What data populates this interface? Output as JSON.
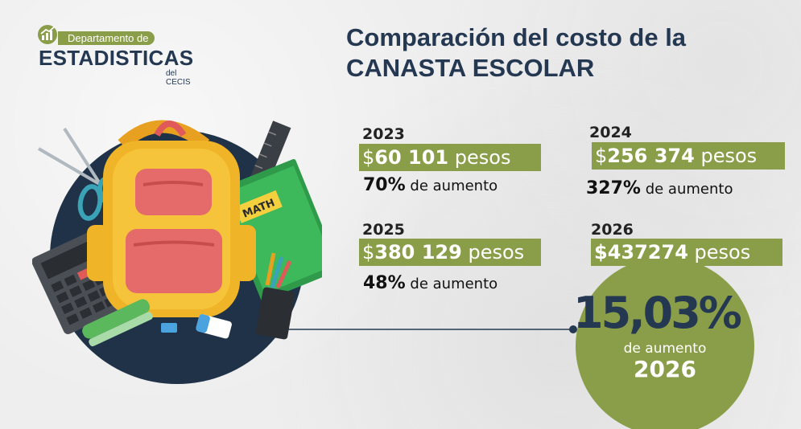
{
  "logo": {
    "line1": "Departamento de",
    "line2": "ESTADISTICAS",
    "line3": "del CECIS"
  },
  "title": {
    "line1": "Comparación del costo de la",
    "line2": "CANASTA ESCOLAR"
  },
  "illustration": {
    "notebook_label": "MATH"
  },
  "years": [
    {
      "year": "2023",
      "amount": "60 101",
      "currency": "$",
      "unit": "pesos",
      "percent": "70%",
      "increase_label": "de aumento"
    },
    {
      "year": "2024",
      "amount": "256 374",
      "currency": "$",
      "unit": "pesos",
      "percent": "327%",
      "increase_label": "de aumento"
    },
    {
      "year": "2025",
      "amount": "380 129",
      "currency": "$",
      "unit": "pesos",
      "percent": "48%",
      "increase_label": "de aumento"
    },
    {
      "year": "2026",
      "amount": "$437274",
      "unit": "pesos"
    }
  ],
  "highlight": {
    "percent": "15,03%",
    "label": "de aumento",
    "year": "2026"
  },
  "colors": {
    "accent_green": "#8a9e49",
    "navy": "#253852",
    "circle_dark": "#1f3248"
  }
}
